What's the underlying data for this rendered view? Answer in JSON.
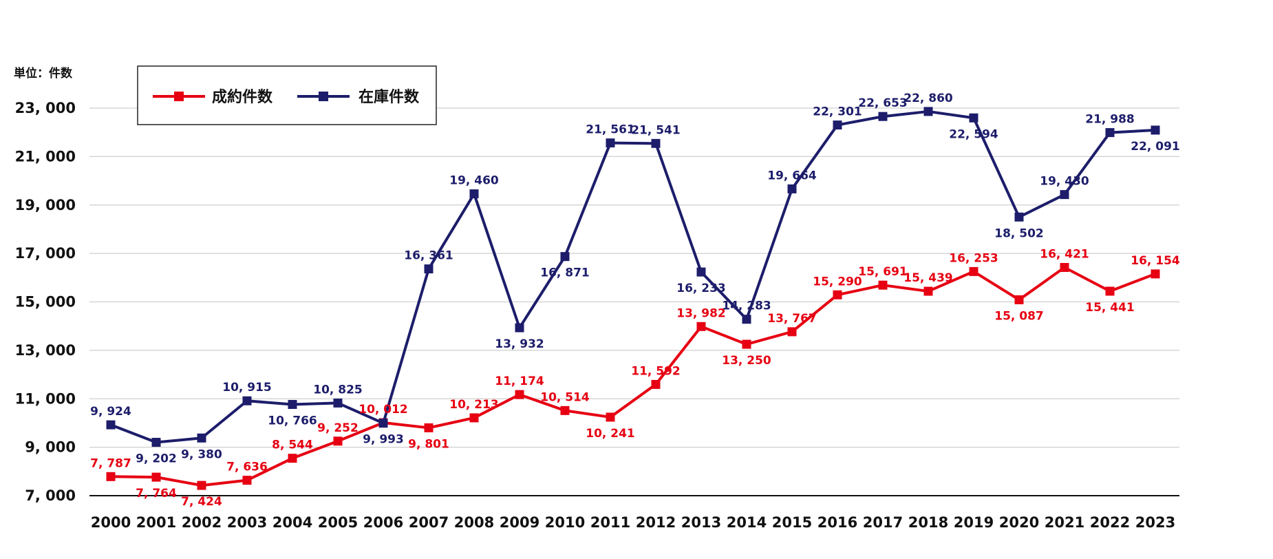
{
  "chart_data": {
    "type": "line",
    "unit_label": "単位：件数",
    "categories": [
      "2000",
      "2001",
      "2002",
      "2003",
      "2004",
      "2005",
      "2006",
      "2007",
      "2008",
      "2009",
      "2010",
      "2011",
      "2012",
      "2013",
      "2014",
      "2015",
      "2016",
      "2017",
      "2018",
      "2019",
      "2020",
      "2021",
      "2022",
      "2023"
    ],
    "series": [
      {
        "name": "成約件数",
        "color": "#e60012",
        "values": [
          7787,
          7764,
          7424,
          7636,
          8544,
          9252,
          10012,
          9801,
          10213,
          11174,
          10514,
          10241,
          11592,
          13982,
          13250,
          13767,
          15290,
          15691,
          15439,
          16253,
          15087,
          16421,
          15441,
          16154
        ],
        "labels": [
          "7, 787",
          "7, 764",
          "7, 424",
          "7, 636",
          "8, 544",
          "9, 252",
          "10, 012",
          "9, 801",
          "10, 213",
          "11, 174",
          "10, 514",
          "10, 241",
          "11, 592",
          "13, 982",
          "13, 250",
          "13, 767",
          "15, 290",
          "15, 691",
          "15, 439",
          "16, 253",
          "15, 087",
          "16, 421",
          "15, 441",
          "16, 154"
        ]
      },
      {
        "name": "在庫件数",
        "color": "#1d1d6b",
        "values": [
          9924,
          9202,
          9380,
          10915,
          10766,
          10825,
          9993,
          16361,
          19460,
          13932,
          16871,
          21561,
          21541,
          16233,
          14283,
          19664,
          22301,
          22653,
          22860,
          22594,
          18502,
          19430,
          21988,
          22091
        ],
        "labels": [
          "9, 924",
          "9, 202",
          "9, 380",
          "10, 915",
          "10, 766",
          "10, 825",
          "9, 993",
          "16, 361",
          "19, 460",
          "13, 932",
          "16, 871",
          "21, 561",
          "21, 541",
          "16, 233",
          "14, 283",
          "19, 664",
          "22, 301",
          "22, 653",
          "22, 860",
          "22, 594",
          "18, 502",
          "19, 430",
          "21, 988",
          "22, 091"
        ]
      }
    ],
    "y_ticks": [
      7000,
      9000,
      11000,
      13000,
      15000,
      17000,
      19000,
      21000,
      23000
    ],
    "y_tick_labels": [
      "7, 000",
      "9, 000",
      "11, 000",
      "13, 000",
      "15, 000",
      "17, 000",
      "19, 000",
      "21, 000",
      "23, 000"
    ],
    "ylim": [
      7000,
      23000
    ],
    "grid": true,
    "legend": "top-left"
  }
}
